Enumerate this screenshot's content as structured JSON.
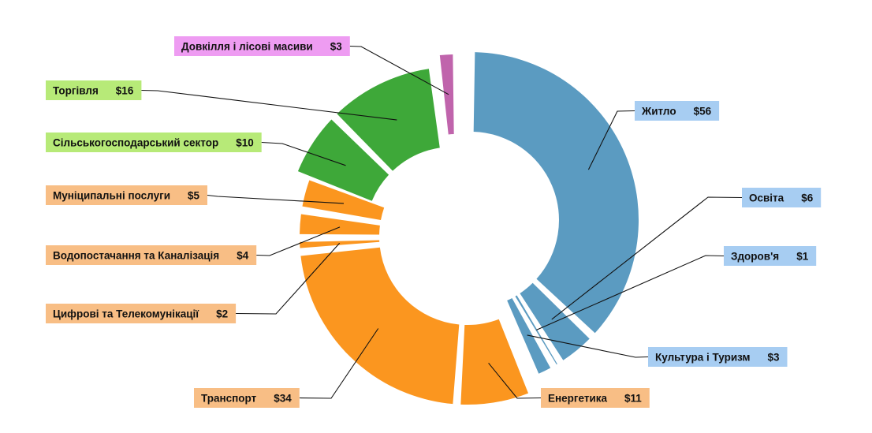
{
  "chart_data": {
    "type": "pie",
    "variant": "donut",
    "categories": [
      "Житло",
      "Освіта",
      "Здоров'я",
      "Культура і Туризм",
      "Енергетика",
      "Транспорт",
      "Цифрові та Телекомунікації",
      "Водопостачання та Каналізація",
      "Муніципальні послуги",
      "Сільськогосподарський сектор",
      "Торгівля",
      "Довкілля і лісові масиви"
    ],
    "values": [
      56,
      6,
      1,
      3,
      11,
      34,
      2,
      4,
      5,
      10,
      16,
      3
    ],
    "value_labels": [
      "$56",
      "$6",
      "$1",
      "$3",
      "$11",
      "$34",
      "$2",
      "$4",
      "$5",
      "$10",
      "$16",
      "$3"
    ],
    "groups": [
      {
        "color": "#5b9bc1",
        "label_bg": "#a7cdf2",
        "members": [
          "Житло",
          "Освіта",
          "Здоров'я",
          "Культура і Туризм"
        ]
      },
      {
        "color": "#fb961f",
        "label_bg": "#f8be85",
        "members": [
          "Енергетика",
          "Транспорт",
          "Цифрові та Телекомунікації",
          "Водопостачання та Каналізація",
          "Муніципальні послуги"
        ]
      },
      {
        "color": "#3ea839",
        "label_bg": "#b7ea78",
        "members": [
          "Сільськогосподарський сектор",
          "Торгівля"
        ]
      },
      {
        "color": "#c064ac",
        "label_bg": "#ee9cf2",
        "members": [
          "Довкілля і лісові масиви"
        ]
      }
    ],
    "title": "",
    "legend": "none"
  }
}
